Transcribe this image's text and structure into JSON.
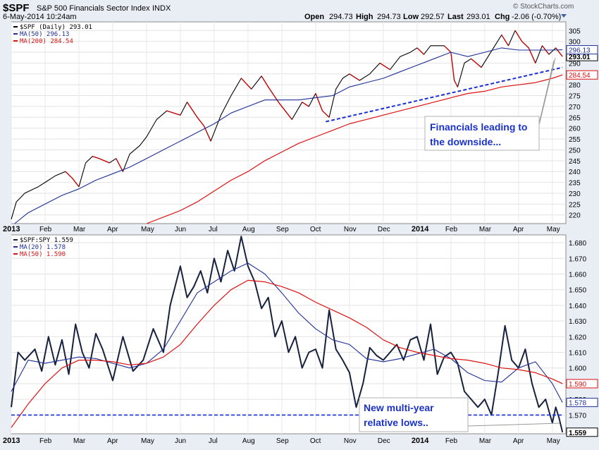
{
  "header": {
    "symbol": "$SPF",
    "name": "S&P 500 Financials Sector Index",
    "exchange": "INDX",
    "datetime": "6-May-2014 10:24am",
    "open_label": "Open",
    "open": "294.73",
    "high_label": "High",
    "high": "294.73",
    "low_label": "Low",
    "low": "292.57",
    "last_label": "Last",
    "last": "293.01",
    "chg_label": "Chg",
    "chg": "-2.06 (-0.70%)",
    "watermark": "© StockCharts.com"
  },
  "colors": {
    "price": "#000000",
    "down": "#cc0000",
    "ma_blue": "#1f2f96",
    "ma_red": "#dd1111",
    "trend": "#1a2fd6",
    "note": "#1a32c8",
    "ratio": "#16213e",
    "background": "#ffffff",
    "frame": "#e9eef5"
  },
  "annotations": {
    "top": [
      "Financials leading to",
      "the downside..."
    ],
    "bottom": [
      "New multi-year",
      "relative lows.."
    ]
  },
  "chart_data": [
    {
      "type": "line",
      "title": "$SPF (Daily) 293.01",
      "legend": [
        {
          "name": "$SPF (Daily)",
          "value": "293.01",
          "color": "#000000"
        },
        {
          "name": "MA(50)",
          "value": "296.13",
          "color": "#1f2f96"
        },
        {
          "name": "MA(200)",
          "value": "284.54",
          "color": "#dd1111"
        }
      ],
      "x_labels": [
        "2013",
        "Feb",
        "Mar",
        "Apr",
        "May",
        "Jun",
        "Jul",
        "Aug",
        "Sep",
        "Oct",
        "Nov",
        "Dec",
        "2014",
        "Feb",
        "Mar",
        "Apr",
        "May"
      ],
      "x_label_months": [
        0,
        1,
        2,
        3,
        4,
        5,
        6,
        7,
        8,
        9,
        10,
        11,
        12,
        13,
        14,
        15,
        16
      ],
      "y_ticks": [
        220,
        225,
        230,
        235,
        240,
        245,
        250,
        255,
        260,
        265,
        270,
        275,
        280,
        285,
        290,
        295,
        300,
        305
      ],
      "ylim": [
        216,
        309
      ],
      "series": [
        {
          "name": "price",
          "x": [
            0,
            0.15,
            0.4,
            0.8,
            1.0,
            1.3,
            1.6,
            1.8,
            2.0,
            2.2,
            2.4,
            2.6,
            2.9,
            3.1,
            3.3,
            3.5,
            3.8,
            4.0,
            4.3,
            4.6,
            5.0,
            5.2,
            5.5,
            5.7,
            5.9,
            6.2,
            6.5,
            6.8,
            7.1,
            7.4,
            7.6,
            7.9,
            8.1,
            8.3,
            8.6,
            8.8,
            9.0,
            9.2,
            9.4,
            9.6,
            9.8,
            10.0,
            10.3,
            10.6,
            10.9,
            11.2,
            11.5,
            11.8,
            12.0,
            12.2,
            12.4,
            12.6,
            12.8,
            13.0,
            13.1,
            13.2,
            13.4,
            13.6,
            13.9,
            14.1,
            14.3,
            14.5,
            14.7,
            14.9,
            15.1,
            15.3,
            15.5,
            15.7,
            15.9,
            16.1,
            16.3
          ],
          "values": [
            218,
            226,
            230,
            233,
            235,
            238,
            240,
            237,
            233,
            244,
            247,
            246,
            244,
            246,
            240,
            248,
            252,
            256,
            264,
            268,
            266,
            272,
            265,
            261,
            254,
            266,
            275,
            283,
            278,
            284,
            279,
            272,
            268,
            264,
            272,
            270,
            276,
            268,
            265,
            278,
            283,
            285,
            282,
            285,
            290,
            287,
            293,
            295,
            297,
            294,
            298,
            298,
            298,
            295,
            282,
            279,
            290,
            292,
            288,
            293,
            298,
            303,
            298,
            305,
            300,
            297,
            290,
            298,
            294,
            297,
            293.01
          ]
        },
        {
          "name": "MA(50)",
          "x": [
            0.1,
            0.5,
            1.0,
            1.5,
            2.0,
            2.5,
            3.0,
            3.5,
            4.0,
            4.5,
            5.0,
            5.5,
            6.0,
            6.5,
            7.0,
            7.5,
            8.0,
            8.5,
            9.0,
            9.5,
            10.0,
            10.5,
            11.0,
            11.5,
            12.0,
            12.5,
            13.0,
            13.5,
            14.0,
            14.5,
            15.0,
            15.5,
            16.0,
            16.3
          ],
          "values": [
            216,
            221,
            225,
            229,
            232,
            236,
            239,
            242,
            246,
            250,
            254,
            258,
            262,
            267,
            270,
            273,
            273,
            273,
            274,
            275,
            279,
            281,
            283,
            286,
            289,
            292,
            295,
            293,
            295,
            297,
            296,
            296,
            296,
            296.13
          ]
        },
        {
          "name": "MA(200)",
          "x": [
            4.0,
            4.5,
            5.0,
            5.5,
            6.0,
            6.5,
            7.0,
            7.5,
            8.0,
            8.5,
            9.0,
            9.5,
            10.0,
            10.5,
            11.0,
            11.5,
            12.0,
            12.5,
            13.0,
            13.5,
            14.0,
            14.5,
            15.0,
            15.5,
            16.0,
            16.3
          ],
          "values": [
            216,
            219,
            222,
            226,
            231,
            236,
            240,
            245,
            249,
            253,
            256,
            259,
            262,
            264,
            266,
            268,
            270,
            272,
            274,
            276,
            277,
            279,
            280,
            281,
            283,
            284.54
          ]
        },
        {
          "name": "trendline",
          "x": [
            9.3,
            16.3
          ],
          "values": [
            263,
            288
          ]
        }
      ]
    },
    {
      "type": "line",
      "title": "$SPF:SPY 1.559",
      "legend": [
        {
          "name": "$SPF:SPY",
          "value": "1.559",
          "color": "#16213e"
        },
        {
          "name": "MA(20)",
          "value": "1.578",
          "color": "#1f2f96"
        },
        {
          "name": "MA(50)",
          "value": "1.590",
          "color": "#dd1111"
        }
      ],
      "x_labels": [
        "2013",
        "Feb",
        "Mar",
        "Apr",
        "May",
        "Jun",
        "Jul",
        "Aug",
        "Sep",
        "Oct",
        "Nov",
        "Dec",
        "2014",
        "Feb",
        "Mar",
        "Apr",
        "May"
      ],
      "x_label_months": [
        0,
        1,
        2,
        3,
        4,
        5,
        6,
        7,
        8,
        9,
        10,
        11,
        12,
        13,
        14,
        15,
        16
      ],
      "y_ticks": [
        1.57,
        1.58,
        1.59,
        1.6,
        1.61,
        1.62,
        1.63,
        1.64,
        1.65,
        1.66,
        1.67,
        1.68
      ],
      "ylim": [
        1.558,
        1.685
      ],
      "series": [
        {
          "name": "$SPF:SPY",
          "x": [
            0,
            0.2,
            0.4,
            0.7,
            0.9,
            1.1,
            1.3,
            1.5,
            1.7,
            1.9,
            2.1,
            2.3,
            2.5,
            2.7,
            3.0,
            3.3,
            3.6,
            3.9,
            4.2,
            4.5,
            4.7,
            5.0,
            5.2,
            5.4,
            5.6,
            5.8,
            6.0,
            6.2,
            6.4,
            6.6,
            6.8,
            7.0,
            7.2,
            7.4,
            7.6,
            7.8,
            8.0,
            8.2,
            8.4,
            8.6,
            8.8,
            9.0,
            9.2,
            9.4,
            9.6,
            9.8,
            10.0,
            10.2,
            10.4,
            10.6,
            10.8,
            11.0,
            11.2,
            11.4,
            11.6,
            11.8,
            12.0,
            12.2,
            12.4,
            12.6,
            12.8,
            13.0,
            13.2,
            13.4,
            13.6,
            13.8,
            14.0,
            14.2,
            14.4,
            14.6,
            14.8,
            15.0,
            15.2,
            15.4,
            15.6,
            15.8,
            16.0,
            16.1,
            16.2,
            16.3
          ],
          "values": [
            1.575,
            1.61,
            1.605,
            1.612,
            1.598,
            1.62,
            1.602,
            1.618,
            1.596,
            1.628,
            1.61,
            1.6,
            1.622,
            1.612,
            1.592,
            1.62,
            1.598,
            1.605,
            1.625,
            1.61,
            1.64,
            1.665,
            1.645,
            1.652,
            1.662,
            1.648,
            1.67,
            1.655,
            1.675,
            1.662,
            1.684,
            1.665,
            1.655,
            1.638,
            1.645,
            1.62,
            1.63,
            1.61,
            1.62,
            1.6,
            1.61,
            1.612,
            1.6,
            1.637,
            1.612,
            1.605,
            1.597,
            1.575,
            1.59,
            1.613,
            1.608,
            1.605,
            1.61,
            1.615,
            1.605,
            1.618,
            1.62,
            1.605,
            1.628,
            1.596,
            1.607,
            1.61,
            1.603,
            1.585,
            1.58,
            1.575,
            1.58,
            1.57,
            1.597,
            1.627,
            1.605,
            1.6,
            1.612,
            1.59,
            1.575,
            1.58,
            1.565,
            1.575,
            1.568,
            1.559
          ]
        },
        {
          "name": "MA(20)",
          "x": [
            0,
            0.5,
            1.0,
            1.5,
            2.0,
            2.5,
            3.0,
            3.5,
            4.0,
            4.5,
            5.0,
            5.5,
            6.0,
            6.5,
            7.0,
            7.5,
            8.0,
            8.5,
            9.0,
            9.5,
            10.0,
            10.5,
            11.0,
            11.5,
            12.0,
            12.5,
            13.0,
            13.5,
            14.0,
            14.5,
            15.0,
            15.5,
            16.0,
            16.3
          ],
          "values": [
            1.585,
            1.605,
            1.603,
            1.605,
            1.607,
            1.606,
            1.603,
            1.6,
            1.603,
            1.612,
            1.63,
            1.648,
            1.655,
            1.662,
            1.667,
            1.66,
            1.648,
            1.635,
            1.625,
            1.618,
            1.615,
            1.606,
            1.604,
            1.606,
            1.609,
            1.612,
            1.606,
            1.597,
            1.592,
            1.591,
            1.6,
            1.604,
            1.59,
            1.578
          ]
        },
        {
          "name": "MA(50)",
          "x": [
            0,
            0.5,
            1.0,
            1.5,
            2.0,
            2.5,
            3.0,
            3.5,
            4.0,
            4.5,
            5.0,
            5.5,
            6.0,
            6.5,
            7.0,
            7.5,
            8.0,
            8.5,
            9.0,
            9.5,
            10.0,
            10.5,
            11.0,
            11.5,
            12.0,
            12.5,
            13.0,
            13.5,
            14.0,
            14.5,
            15.0,
            15.5,
            16.0,
            16.3
          ],
          "values": [
            1.562,
            1.577,
            1.59,
            1.6,
            1.605,
            1.605,
            1.604,
            1.602,
            1.603,
            1.607,
            1.615,
            1.628,
            1.64,
            1.65,
            1.656,
            1.655,
            1.652,
            1.648,
            1.642,
            1.637,
            1.632,
            1.626,
            1.618,
            1.613,
            1.61,
            1.608,
            1.606,
            1.605,
            1.603,
            1.6,
            1.599,
            1.597,
            1.593,
            1.59
          ]
        },
        {
          "name": "support",
          "x": [
            0,
            16.3
          ],
          "values": [
            1.57,
            1.57
          ]
        }
      ]
    }
  ]
}
